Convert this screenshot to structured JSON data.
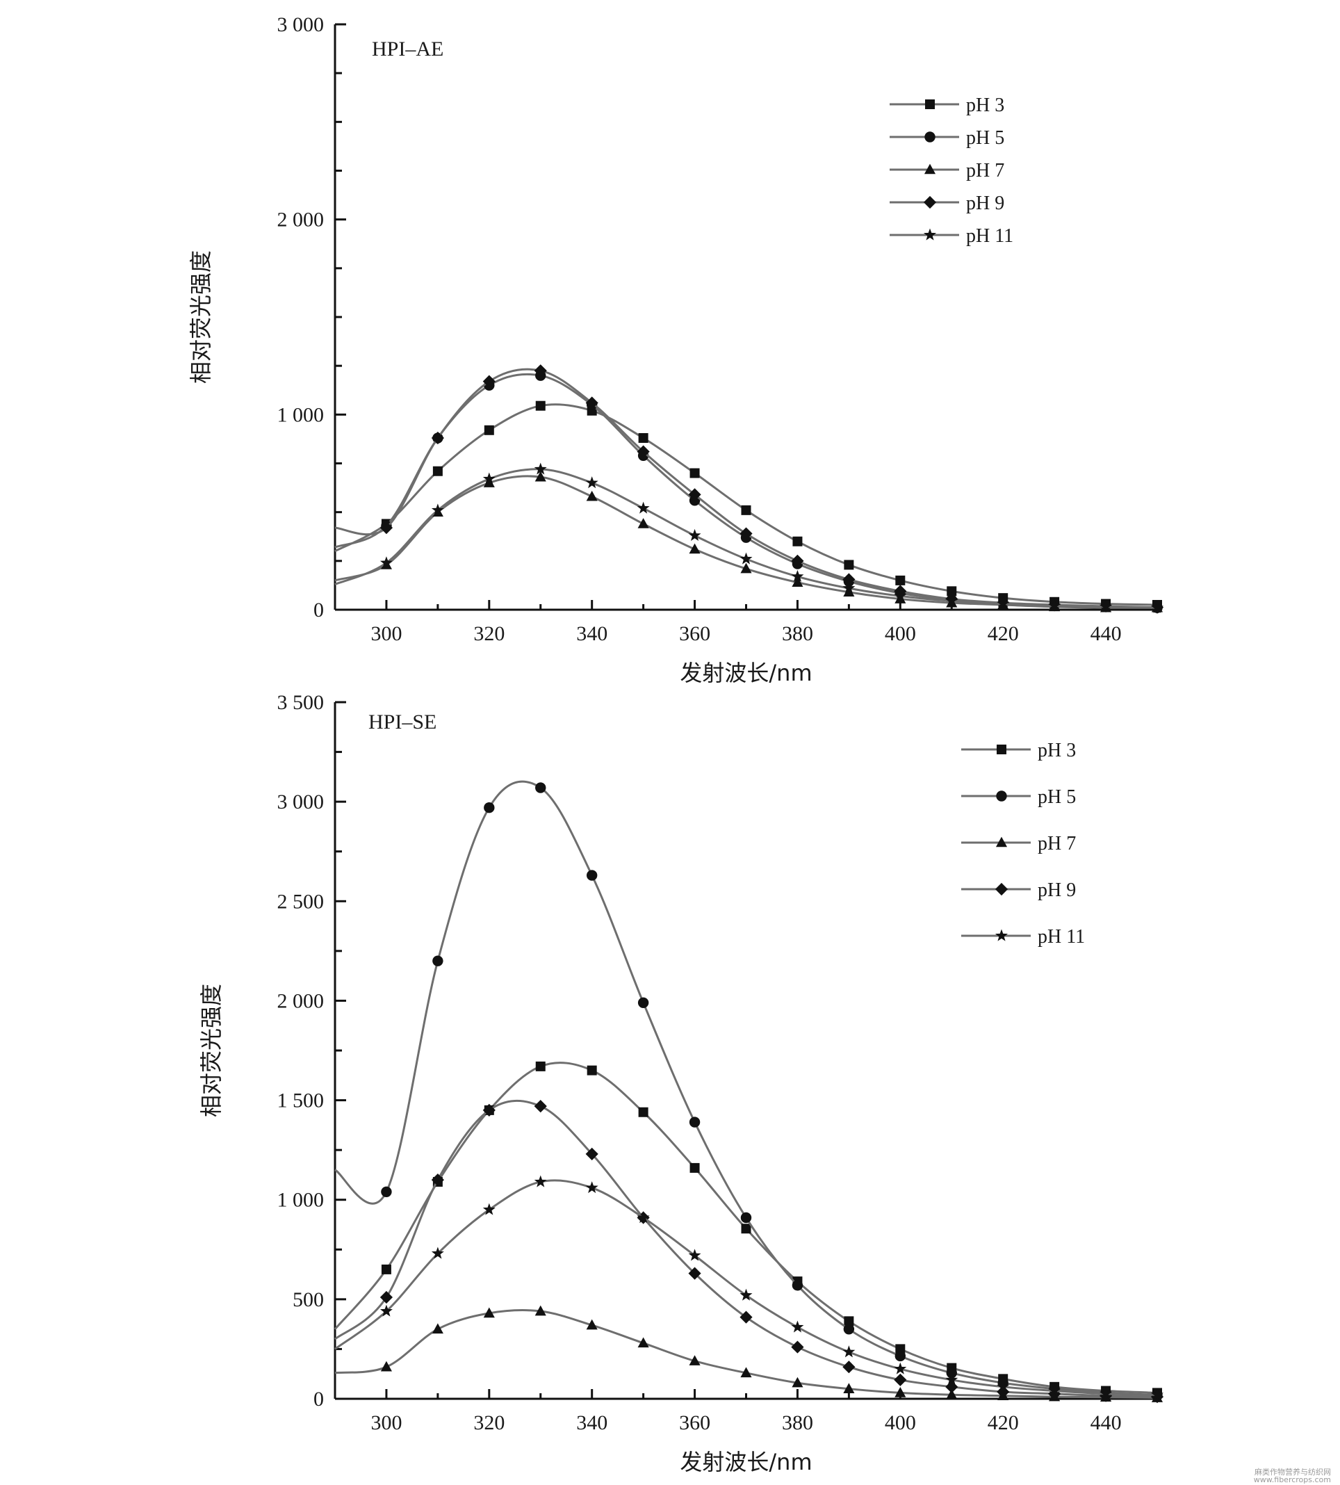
{
  "watermark": {
    "line1": "麻类作物营养与纺织网",
    "line2": "www.fibercrops.com"
  },
  "chart_data": [
    {
      "type": "line",
      "panel_label": "HPI–AE",
      "xlabel": "发射波长/nm",
      "ylabel": "相对荧光强度",
      "xlim": [
        290,
        450
      ],
      "ylim": [
        0,
        3000
      ],
      "x_ticks": [
        300,
        320,
        340,
        360,
        380,
        400,
        420,
        440
      ],
      "y_major_ticks": [
        {
          "value": 0,
          "label": "0"
        },
        {
          "value": 1000,
          "label": "1 000"
        },
        {
          "value": 2000,
          "label": "2 000"
        },
        {
          "value": 3000,
          "label": "3 000"
        }
      ],
      "y_minor_step": 250,
      "grid": false,
      "legend_position": "top-right",
      "x": [
        290,
        300,
        310,
        320,
        330,
        340,
        350,
        360,
        370,
        380,
        390,
        400,
        410,
        420,
        430,
        440,
        450
      ],
      "series": [
        {
          "name": "pH 3",
          "marker": "square",
          "values": [
            300,
            440,
            710,
            920,
            1045,
            1020,
            880,
            700,
            510,
            350,
            230,
            150,
            95,
            60,
            40,
            30,
            25
          ]
        },
        {
          "name": "pH 5",
          "marker": "circle",
          "values": [
            320,
            430,
            880,
            1150,
            1200,
            1050,
            790,
            560,
            370,
            235,
            145,
            85,
            50,
            30,
            20,
            15,
            10
          ]
        },
        {
          "name": "pH 7",
          "marker": "triangle",
          "values": [
            150,
            230,
            500,
            650,
            680,
            580,
            440,
            310,
            210,
            140,
            90,
            55,
            35,
            25,
            15,
            10,
            10
          ]
        },
        {
          "name": "pH 9",
          "marker": "diamond",
          "values": [
            420,
            420,
            880,
            1170,
            1225,
            1060,
            810,
            590,
            390,
            250,
            155,
            95,
            55,
            35,
            25,
            18,
            12
          ]
        },
        {
          "name": "pH 11",
          "marker": "star",
          "values": [
            130,
            240,
            510,
            670,
            720,
            650,
            520,
            380,
            260,
            170,
            110,
            70,
            45,
            30,
            20,
            15,
            10
          ]
        }
      ]
    },
    {
      "type": "line",
      "panel_label": "HPI–SE",
      "xlabel": "发射波长/nm",
      "ylabel": "相对荧光强度",
      "xlim": [
        290,
        450
      ],
      "ylim": [
        0,
        3500
      ],
      "x_ticks": [
        300,
        320,
        340,
        360,
        380,
        400,
        420,
        440
      ],
      "y_major_ticks": [
        {
          "value": 0,
          "label": "0"
        },
        {
          "value": 500,
          "label": "500"
        },
        {
          "value": 1000,
          "label": "1 000"
        },
        {
          "value": 1500,
          "label": "1 500"
        },
        {
          "value": 2000,
          "label": "2 000"
        },
        {
          "value": 2500,
          "label": "2 500"
        },
        {
          "value": 3000,
          "label": "3 000"
        },
        {
          "value": 3500,
          "label": "3 500"
        }
      ],
      "y_minor_step": 250,
      "grid": false,
      "legend_position": "top-right",
      "x": [
        290,
        300,
        310,
        320,
        330,
        340,
        350,
        360,
        370,
        380,
        390,
        400,
        410,
        420,
        430,
        440,
        450
      ],
      "series": [
        {
          "name": "pH 3",
          "marker": "square",
          "values": [
            350,
            650,
            1090,
            1450,
            1670,
            1650,
            1440,
            1160,
            855,
            590,
            390,
            250,
            155,
            100,
            60,
            40,
            30
          ]
        },
        {
          "name": "pH 5",
          "marker": "circle",
          "values": [
            1150,
            1040,
            2200,
            2970,
            3070,
            2630,
            1990,
            1390,
            910,
            570,
            350,
            215,
            130,
            80,
            50,
            30,
            20
          ]
        },
        {
          "name": "pH 7",
          "marker": "triangle",
          "values": [
            130,
            160,
            350,
            430,
            440,
            370,
            280,
            190,
            130,
            80,
            50,
            30,
            20,
            15,
            10,
            8,
            5
          ]
        },
        {
          "name": "pH 9",
          "marker": "diamond",
          "values": [
            300,
            510,
            1100,
            1450,
            1470,
            1230,
            910,
            630,
            410,
            260,
            160,
            95,
            60,
            35,
            25,
            15,
            10
          ]
        },
        {
          "name": "pH 11",
          "marker": "star",
          "values": [
            250,
            440,
            730,
            950,
            1090,
            1060,
            910,
            720,
            520,
            360,
            235,
            150,
            95,
            60,
            40,
            25,
            20
          ]
        }
      ]
    }
  ]
}
